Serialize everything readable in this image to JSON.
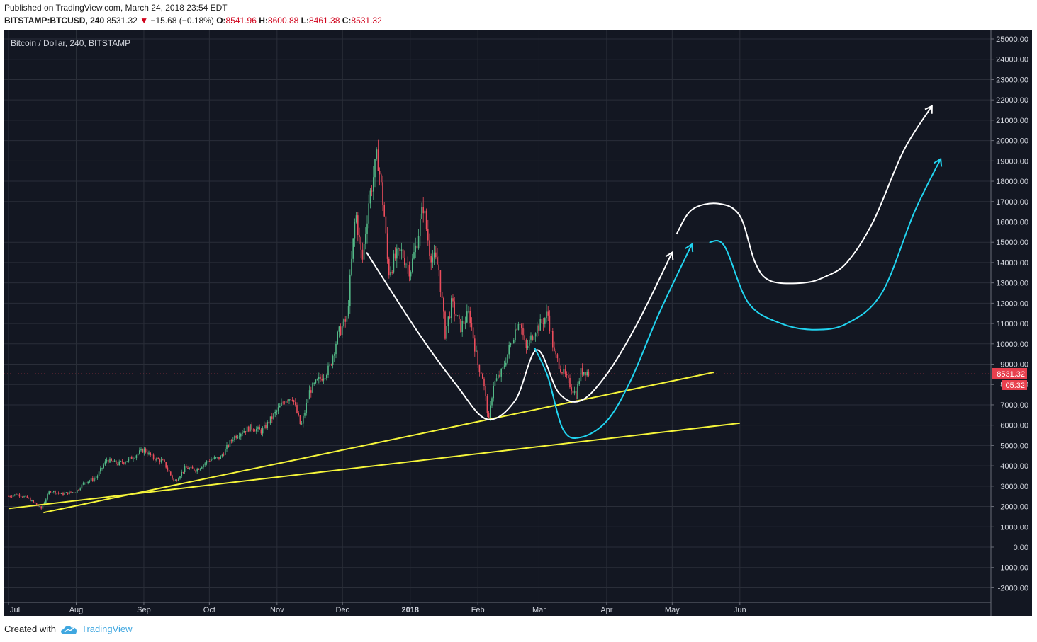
{
  "header": {
    "published": "Published on TradingView.com, March 24, 2018 23:54 EDT",
    "symbol": "BITSTAMP:BTCUSD, 240",
    "last": "8531.32",
    "arrow": "▼",
    "change": "−15.68 (−0.18%)",
    "o_label": "O:",
    "o": "8541.96",
    "h_label": "H:",
    "h": "8600.88",
    "l_label": "L:",
    "l": "8461.38",
    "c_label": "C:",
    "c": "8531.32"
  },
  "footer": {
    "created_with": "Created with",
    "brand": "TradingView",
    "brand_icon": "tradingview-cloud-icon"
  },
  "colors": {
    "background": "#131722",
    "grid": "#2a2e39",
    "up": "#53b987",
    "down": "#eb4d5c",
    "trendline": "#f5f53a",
    "projection_white": "#ffffff",
    "projection_cyan": "#21d4f0",
    "price_tag": "#e8404e"
  },
  "chart_data": {
    "type": "candlestick",
    "title": "Bitcoin / Dollar, 240, BITSTAMP",
    "xlabel": "",
    "ylabel": "",
    "x_ticks": [
      "Jul",
      "Aug",
      "Sep",
      "Oct",
      "Nov",
      "Dec",
      "2018",
      "Feb",
      "Mar",
      "Apr",
      "May",
      "Jun"
    ],
    "y_ticks": [
      "25000.00",
      "24000.00",
      "23000.00",
      "22000.00",
      "21000.00",
      "20000.00",
      "19000.00",
      "18000.00",
      "17000.00",
      "16000.00",
      "15000.00",
      "14000.00",
      "13000.00",
      "12000.00",
      "11000.00",
      "10000.00",
      "9000.00",
      "8000.00",
      "7000.00",
      "6000.00",
      "5000.00",
      "4000.00",
      "3000.00",
      "2000.00",
      "1000.00",
      "0.00",
      "-1000.00",
      "-2000.00"
    ],
    "ylim": [
      -2800,
      25600
    ],
    "grid": true,
    "last_price_label": "8531.32",
    "countdown_label": "05:32",
    "price_path": [
      [
        "2017-07-01",
        2500
      ],
      [
        "2017-07-05",
        2600
      ],
      [
        "2017-07-10",
        2400
      ],
      [
        "2017-07-16",
        1900
      ],
      [
        "2017-07-20",
        2800
      ],
      [
        "2017-07-25",
        2600
      ],
      [
        "2017-08-01",
        2750
      ],
      [
        "2017-08-05",
        3200
      ],
      [
        "2017-08-10",
        3400
      ],
      [
        "2017-08-15",
        4300
      ],
      [
        "2017-08-20",
        4100
      ],
      [
        "2017-08-25",
        4300
      ],
      [
        "2017-09-01",
        4800
      ],
      [
        "2017-09-05",
        4400
      ],
      [
        "2017-09-10",
        4200
      ],
      [
        "2017-09-15",
        3200
      ],
      [
        "2017-09-20",
        3900
      ],
      [
        "2017-09-25",
        3800
      ],
      [
        "2017-10-01",
        4300
      ],
      [
        "2017-10-06",
        4400
      ],
      [
        "2017-10-12",
        5400
      ],
      [
        "2017-10-16",
        5700
      ],
      [
        "2017-10-20",
        5900
      ],
      [
        "2017-10-25",
        5700
      ],
      [
        "2017-11-01",
        6700
      ],
      [
        "2017-11-05",
        7300
      ],
      [
        "2017-11-08",
        7400
      ],
      [
        "2017-11-12",
        5900
      ],
      [
        "2017-11-16",
        7700
      ],
      [
        "2017-11-20",
        8200
      ],
      [
        "2017-11-25",
        8800
      ],
      [
        "2017-11-29",
        10500
      ],
      [
        "2017-12-03",
        11200
      ],
      [
        "2017-12-07",
        16500
      ],
      [
        "2017-12-10",
        14000
      ],
      [
        "2017-12-13",
        17000
      ],
      [
        "2017-12-17",
        19300
      ],
      [
        "2017-12-20",
        16500
      ],
      [
        "2017-12-22",
        13500
      ],
      [
        "2017-12-25",
        14200
      ],
      [
        "2017-12-28",
        14500
      ],
      [
        "2018-01-01",
        13600
      ],
      [
        "2018-01-04",
        15000
      ],
      [
        "2018-01-07",
        16800
      ],
      [
        "2018-01-10",
        14500
      ],
      [
        "2018-01-14",
        13800
      ],
      [
        "2018-01-17",
        10500
      ],
      [
        "2018-01-20",
        12000
      ],
      [
        "2018-01-24",
        10800
      ],
      [
        "2018-01-28",
        11500
      ],
      [
        "2018-02-01",
        9000
      ],
      [
        "2018-02-03",
        8500
      ],
      [
        "2018-02-06",
        6200
      ],
      [
        "2018-02-08",
        8000
      ],
      [
        "2018-02-12",
        8600
      ],
      [
        "2018-02-16",
        10000
      ],
      [
        "2018-02-20",
        11300
      ],
      [
        "2018-02-23",
        9700
      ],
      [
        "2018-02-27",
        10700
      ],
      [
        "2018-03-02",
        11000
      ],
      [
        "2018-03-05",
        11500
      ],
      [
        "2018-03-08",
        9500
      ],
      [
        "2018-03-11",
        8800
      ],
      [
        "2018-03-14",
        8200
      ],
      [
        "2018-03-18",
        7500
      ],
      [
        "2018-03-20",
        8600
      ],
      [
        "2018-03-22",
        8700
      ],
      [
        "2018-03-24",
        8531
      ]
    ],
    "trendlines": [
      {
        "name": "support-upper",
        "start": [
          "2017-07-17",
          1700
        ],
        "end": [
          "2018-05-20",
          8600
        ]
      },
      {
        "name": "support-lower",
        "start": [
          "2017-07-01",
          1900
        ],
        "end": [
          "2018-06-01",
          6100
        ]
      }
    ],
    "projections": [
      {
        "name": "projection-white-cup",
        "color": "white",
        "points": [
          [
            "2017-12-12",
            14500
          ],
          [
            "2018-01-05",
            10500
          ],
          [
            "2018-01-22",
            8000
          ],
          [
            "2018-02-05",
            6300
          ],
          [
            "2018-02-18",
            7200
          ],
          [
            "2018-02-28",
            9700
          ],
          [
            "2018-03-10",
            7600
          ],
          [
            "2018-03-20",
            7200
          ],
          [
            "2018-04-01",
            8500
          ],
          [
            "2018-04-15",
            11000
          ],
          [
            "2018-05-01",
            14500
          ]
        ],
        "arrow_head": true
      },
      {
        "name": "projection-white-future",
        "color": "white",
        "points": [
          [
            "2018-05-03",
            15400
          ],
          [
            "2018-05-10",
            16600
          ],
          [
            "2018-05-22",
            16900
          ],
          [
            "2018-06-01",
            16300
          ],
          [
            "2018-06-08",
            14000
          ],
          [
            "2018-06-15",
            13100
          ],
          [
            "2018-06-30",
            13000
          ],
          [
            "2018-07-10",
            13300
          ],
          [
            "2018-07-20",
            14000
          ],
          [
            "2018-08-01",
            16000
          ],
          [
            "2018-08-15",
            19500
          ],
          [
            "2018-08-28",
            21700
          ]
        ],
        "arrow_head": true
      },
      {
        "name": "projection-cyan",
        "color": "cyan",
        "points": [
          [
            "2018-02-27",
            9800
          ],
          [
            "2018-03-05",
            8400
          ],
          [
            "2018-03-12",
            5800
          ],
          [
            "2018-03-20",
            5400
          ],
          [
            "2018-04-01",
            6200
          ],
          [
            "2018-04-12",
            8200
          ],
          [
            "2018-04-25",
            11500
          ],
          [
            "2018-05-10",
            14900
          ]
        ],
        "arrow_head": true
      },
      {
        "name": "projection-cyan-future",
        "color": "cyan",
        "points": [
          [
            "2018-05-18",
            15000
          ],
          [
            "2018-05-25",
            14800
          ],
          [
            "2018-06-05",
            12000
          ],
          [
            "2018-06-20",
            11000
          ],
          [
            "2018-07-05",
            10700
          ],
          [
            "2018-07-20",
            11000
          ],
          [
            "2018-08-05",
            12500
          ],
          [
            "2018-08-20",
            16500
          ],
          [
            "2018-09-01",
            19100
          ]
        ],
        "arrow_head": true
      }
    ]
  }
}
